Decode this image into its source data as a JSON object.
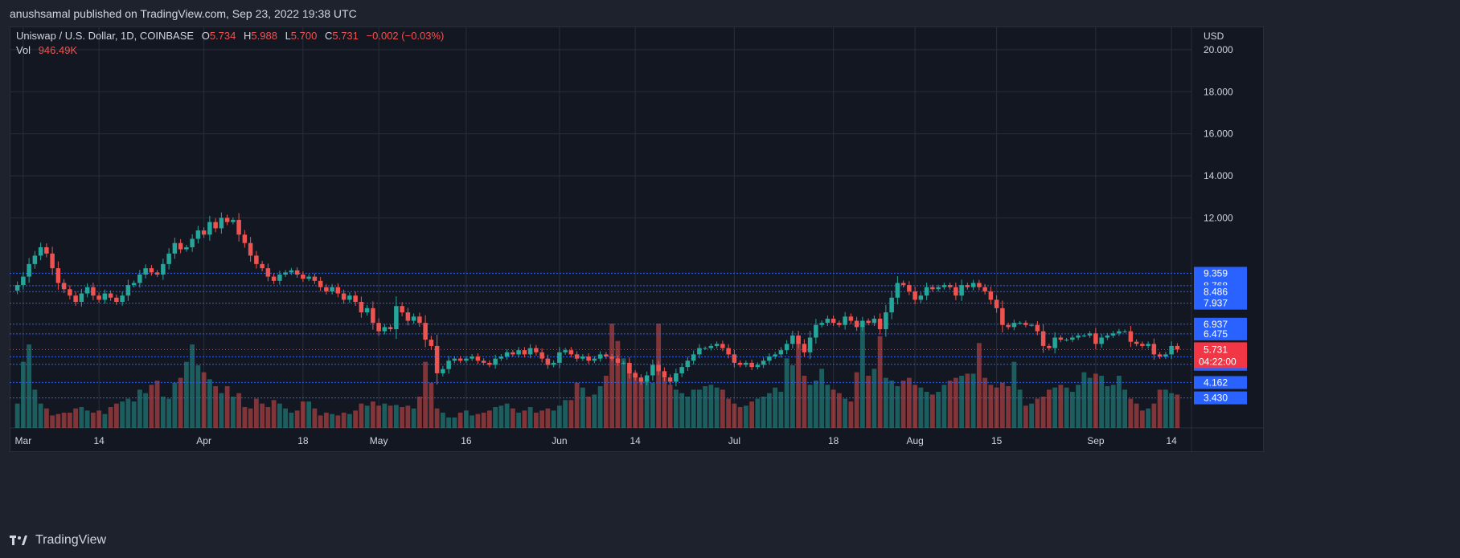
{
  "header": {
    "publisher_line": "anushsamal published on TradingView.com, Sep 23, 2022 19:38 UTC"
  },
  "footer": {
    "brand": "TradingView"
  },
  "legend": {
    "symbol": "Uniswap / U.S. Dollar, 1D, COINBASE",
    "open_label": "O",
    "open": "5.734",
    "high_label": "H",
    "high": "5.988",
    "low_label": "L",
    "low": "5.700",
    "close_label": "C",
    "close": "5.731",
    "change": "−0.002 (−0.03%)",
    "vol_label": "Vol",
    "vol": "946.49K"
  },
  "colors": {
    "up": "#26a69a",
    "down": "#ef5350",
    "level_line": "#2962ff",
    "level_label": "#2962ff",
    "price_label": "#f23645",
    "grid": "#2a2e39",
    "text": "#d1d4dc"
  },
  "chart_data": {
    "type": "candlestick",
    "currency": "USD",
    "y_ticks": [
      "20.000",
      "18.000",
      "16.000",
      "14.000",
      "12.000"
    ],
    "ylim": [
      2.0,
      20.8
    ],
    "x_ticks": [
      {
        "label": "Mar",
        "index": 1
      },
      {
        "label": "14",
        "index": 14
      },
      {
        "label": "Apr",
        "index": 32
      },
      {
        "label": "18",
        "index": 49
      },
      {
        "label": "May",
        "index": 62
      },
      {
        "label": "16",
        "index": 77
      },
      {
        "label": "Jun",
        "index": 93
      },
      {
        "label": "14",
        "index": 106
      },
      {
        "label": "Jul",
        "index": 123
      },
      {
        "label": "18",
        "index": 140
      },
      {
        "label": "Aug",
        "index": 154
      },
      {
        "label": "15",
        "index": 168
      },
      {
        "label": "Sep",
        "index": 185
      },
      {
        "label": "14",
        "index": 198
      }
    ],
    "levels": [
      {
        "value": "9.359",
        "v": 9.359
      },
      {
        "value": "8.768",
        "v": 8.768
      },
      {
        "value": "8.486",
        "v": 8.486
      },
      {
        "value": "7.937",
        "v": 7.937
      },
      {
        "value": "6.937",
        "v": 6.937
      },
      {
        "value": "6.475",
        "v": 6.475
      },
      {
        "value": "5.386",
        "v": 5.386
      },
      {
        "value": "5.029",
        "v": 5.029
      },
      {
        "value": "4.162",
        "v": 4.162
      },
      {
        "value": "3.430",
        "v": 3.43
      }
    ],
    "last_price": {
      "value": "5.731",
      "v": 5.731,
      "countdown": "04:22:00"
    },
    "closes": [
      8.8,
      9.2,
      9.8,
      10.2,
      10.6,
      10.3,
      9.6,
      8.9,
      8.6,
      8.3,
      8.0,
      8.4,
      8.7,
      8.3,
      8.1,
      8.4,
      8.2,
      8.0,
      8.3,
      8.8,
      8.9,
      9.3,
      9.6,
      9.4,
      9.3,
      9.8,
      10.3,
      10.8,
      10.5,
      10.6,
      11.0,
      11.4,
      11.2,
      11.8,
      11.5,
      12.0,
      11.8,
      11.9,
      11.2,
      10.8,
      10.2,
      9.8,
      9.6,
      9.2,
      9.0,
      9.3,
      9.4,
      9.5,
      9.3,
      9.1,
      9.2,
      9.0,
      8.7,
      8.5,
      8.7,
      8.4,
      8.1,
      8.3,
      8.0,
      7.5,
      7.7,
      7.0,
      6.6,
      6.8,
      6.7,
      7.8,
      7.5,
      7.1,
      7.3,
      7.0,
      6.2,
      5.9,
      4.6,
      4.8,
      5.2,
      5.3,
      5.2,
      5.3,
      5.4,
      5.2,
      5.1,
      5.0,
      5.3,
      5.4,
      5.6,
      5.5,
      5.7,
      5.5,
      5.8,
      5.6,
      5.3,
      5.0,
      5.1,
      5.6,
      5.7,
      5.5,
      5.3,
      5.4,
      5.2,
      5.3,
      5.5,
      5.4,
      5.3,
      5.1,
      5.1,
      4.6,
      4.4,
      4.2,
      4.5,
      5.0,
      4.7,
      4.4,
      4.2,
      4.6,
      4.9,
      5.2,
      5.5,
      5.8,
      5.8,
      5.9,
      6.0,
      5.8,
      5.5,
      5.1,
      5.0,
      5.1,
      4.9,
      5.0,
      5.2,
      5.4,
      5.5,
      5.7,
      6.0,
      6.4,
      6.0,
      5.6,
      6.3,
      6.9,
      7.0,
      7.2,
      7.0,
      6.9,
      7.3,
      7.1,
      6.8,
      7.1,
      7.0,
      7.2,
      6.7,
      7.5,
      8.2,
      8.9,
      8.8,
      8.5,
      8.1,
      8.3,
      8.7,
      8.6,
      8.7,
      8.8,
      8.7,
      8.3,
      8.8,
      8.7,
      8.9,
      8.7,
      8.5,
      8.1,
      7.7,
      6.9,
      6.8,
      7.0,
      7.0,
      6.9,
      6.9,
      6.6,
      5.9,
      5.8,
      6.3,
      6.2,
      6.2,
      6.3,
      6.4,
      6.4,
      6.5,
      6.0,
      6.3,
      6.4,
      6.5,
      6.6,
      6.6,
      6.1,
      6.0,
      5.9,
      6.0,
      5.5,
      5.4,
      5.5,
      5.9,
      5.731
    ],
    "volume": [
      0.35,
      0.95,
      1.2,
      0.55,
      0.35,
      0.28,
      0.18,
      0.2,
      0.22,
      0.22,
      0.28,
      0.3,
      0.25,
      0.22,
      0.25,
      0.2,
      0.3,
      0.35,
      0.38,
      0.42,
      0.38,
      0.55,
      0.5,
      0.62,
      0.68,
      0.45,
      0.42,
      0.65,
      0.72,
      0.95,
      1.2,
      0.9,
      0.8,
      0.7,
      0.6,
      0.5,
      0.6,
      0.45,
      0.5,
      0.3,
      0.28,
      0.42,
      0.35,
      0.3,
      0.4,
      0.35,
      0.28,
      0.22,
      0.25,
      0.38,
      0.38,
      0.28,
      0.18,
      0.22,
      0.2,
      0.18,
      0.22,
      0.2,
      0.25,
      0.35,
      0.32,
      0.38,
      0.32,
      0.35,
      0.32,
      0.33,
      0.3,
      0.32,
      0.28,
      0.45,
      0.95,
      0.65,
      0.28,
      0.22,
      0.15,
      0.15,
      0.22,
      0.25,
      0.18,
      0.2,
      0.22,
      0.25,
      0.3,
      0.32,
      0.35,
      0.28,
      0.22,
      0.25,
      0.3,
      0.22,
      0.25,
      0.28,
      0.25,
      0.32,
      0.4,
      0.4,
      0.65,
      0.58,
      0.45,
      0.48,
      0.6,
      0.75,
      1.5,
      1.25,
      1.0,
      0.92,
      0.8,
      0.7,
      0.68,
      0.65,
      1.5,
      0.72,
      0.62,
      0.55,
      0.5,
      0.45,
      0.55,
      0.55,
      0.6,
      0.62,
      0.58,
      0.55,
      0.42,
      0.35,
      0.3,
      0.32,
      0.38,
      0.42,
      0.45,
      0.5,
      0.58,
      0.52,
      1.0,
      0.9,
      1.32,
      0.75,
      0.62,
      0.68,
      0.85,
      0.62,
      0.55,
      0.5,
      0.42,
      0.38,
      0.8,
      1.45,
      0.75,
      0.85,
      1.32,
      0.72,
      0.68,
      0.6,
      0.68,
      0.72,
      0.62,
      0.58,
      0.52,
      0.48,
      0.52,
      0.62,
      0.68,
      0.72,
      0.75,
      0.78,
      0.78,
      1.22,
      0.72,
      0.62,
      0.58,
      0.65,
      0.6,
      0.95,
      0.55,
      0.32,
      0.35,
      0.42,
      0.45,
      0.55,
      0.58,
      0.62,
      0.58,
      0.52,
      0.62,
      0.8,
      0.72,
      0.78,
      0.75,
      0.6,
      0.62,
      0.75,
      0.55,
      0.42,
      0.35,
      0.25,
      0.28,
      0.35,
      0.55,
      0.55,
      0.5,
      0.48
    ]
  }
}
